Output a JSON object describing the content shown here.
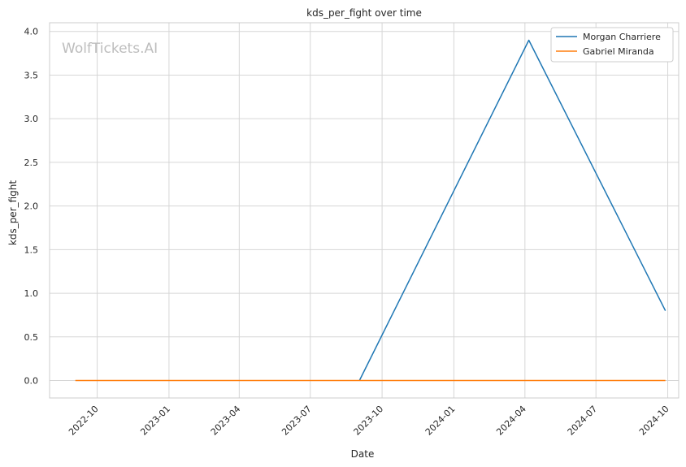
{
  "chart_data": {
    "type": "line",
    "title": "kds_per_fight over time",
    "xlabel": "Date",
    "ylabel": "kds_per_fight",
    "watermark": "WolfTickets.AI",
    "ylim": [
      -0.2,
      4.1
    ],
    "xlim": [
      "2022-08-01",
      "2024-10-15"
    ],
    "x_ticks": [
      "2022-10",
      "2023-01",
      "2023-04",
      "2023-07",
      "2023-10",
      "2024-01",
      "2024-04",
      "2024-07",
      "2024-10"
    ],
    "y_ticks": [
      "0.0",
      "0.5",
      "1.0",
      "1.5",
      "2.0",
      "2.5",
      "3.0",
      "3.5",
      "4.0"
    ],
    "grid": true,
    "legend_position": "top-right",
    "series": [
      {
        "name": "Morgan Charriere",
        "color": "#1f77b4",
        "points": [
          {
            "x": "2023-09-02",
            "y": 0.0
          },
          {
            "x": "2024-04-06",
            "y": 3.9
          },
          {
            "x": "2024-09-28",
            "y": 0.8
          }
        ]
      },
      {
        "name": "Gabriel Miranda",
        "color": "#ff7f0e",
        "points": [
          {
            "x": "2022-09-03",
            "y": 0.0
          },
          {
            "x": "2024-09-28",
            "y": 0.0
          }
        ]
      }
    ]
  }
}
